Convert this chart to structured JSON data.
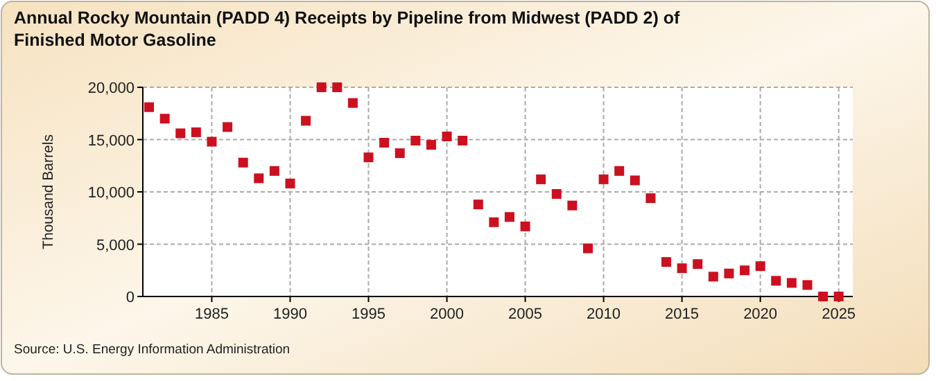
{
  "chart_data": {
    "type": "scatter",
    "title": "Annual Rocky Mountain (PADD 4) Receipts by Pipeline from Midwest (PADD 2) of Finished Motor Gasoline",
    "ylabel": "Thousand Barrels",
    "annotations": [
      "Source: U.S. Energy Information Administration"
    ],
    "x": [
      1981,
      1982,
      1983,
      1984,
      1985,
      1986,
      1987,
      1988,
      1989,
      1990,
      1991,
      1992,
      1993,
      1994,
      1995,
      1996,
      1997,
      1998,
      1999,
      2000,
      2001,
      2002,
      2003,
      2004,
      2005,
      2006,
      2007,
      2008,
      2009,
      2010,
      2011,
      2012,
      2013,
      2014,
      2015,
      2016,
      2017,
      2018,
      2019,
      2020,
      2021,
      2022,
      2023,
      2024,
      2025
    ],
    "series": [
      {
        "color": "#cc1020",
        "values": [
          18100,
          17000,
          15600,
          15700,
          14800,
          16200,
          12800,
          11300,
          12000,
          10800,
          16800,
          20000,
          20000,
          18500,
          13300,
          14700,
          13700,
          14900,
          14500,
          15300,
          14900,
          8800,
          7100,
          7600,
          6700,
          11200,
          9800,
          8700,
          4600,
          11200,
          12000,
          11100,
          9400,
          3300,
          2700,
          3100,
          1900,
          2200,
          2500,
          2900,
          1500,
          1300,
          1100,
          0,
          0
        ]
      }
    ],
    "xlim": [
      1980.6,
      2025.9
    ],
    "xticks": [
      1985,
      1990,
      1995,
      2000,
      2005,
      2010,
      2015,
      2020,
      2025
    ],
    "ylim": [
      0,
      20000
    ],
    "yticks": [
      {
        "value": 0,
        "label": "0"
      },
      {
        "value": 5000,
        "label": "5,000"
      },
      {
        "value": 10000,
        "label": "10,000"
      },
      {
        "value": 15000,
        "label": "15,000"
      },
      {
        "value": 20000,
        "label": "20,000"
      }
    ],
    "grid": true,
    "marker": "square"
  }
}
